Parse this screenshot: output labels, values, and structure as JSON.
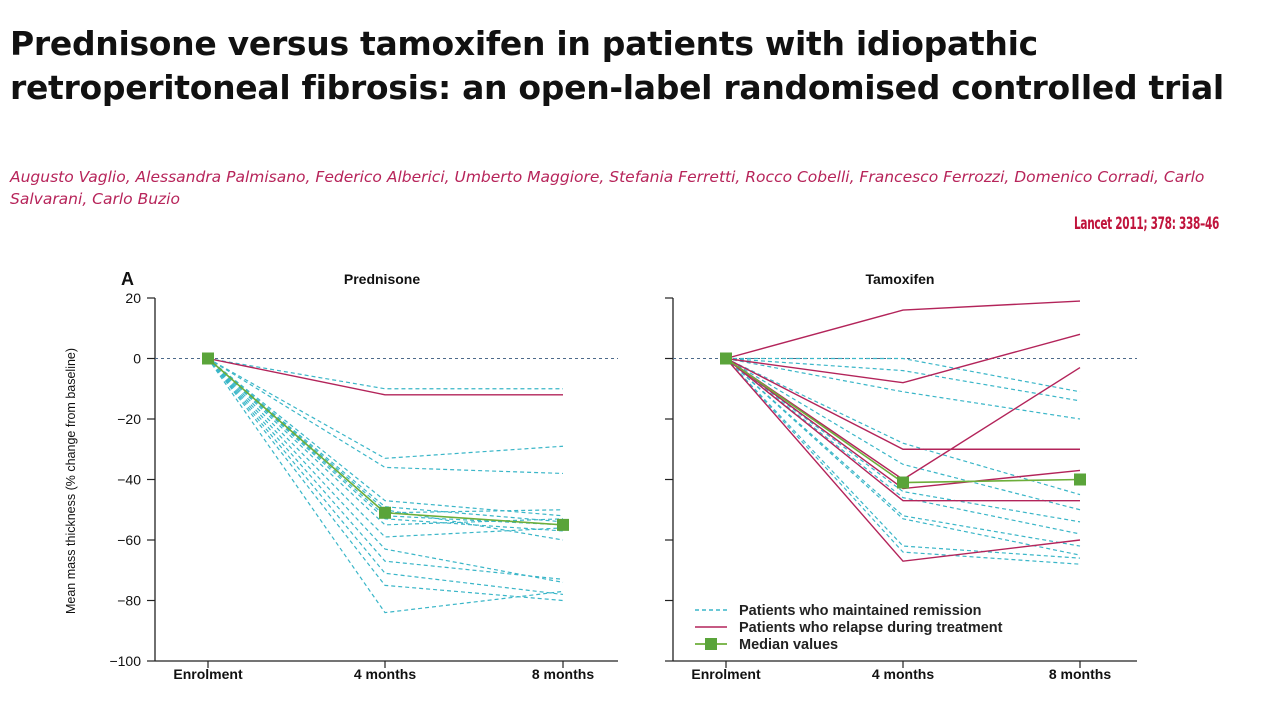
{
  "header": {
    "title": "Prednisone versus tamoxifen in patients with idiopathic retroperitoneal fibrosis: an open-label randomised controlled trial",
    "authors": "Augusto Vaglio, Alessandra Palmisano, Federico Alberici, Umberto Maggiore, Stefania Ferretti, Rocco Cobelli, Francesco Ferrozzi, Domenico Corradi, Carlo Salvarani, Carlo Buzio",
    "citation": "Lancet 2011; 378: 338–46"
  },
  "colors": {
    "remission": "#3ab6c8",
    "relapse": "#b3245a",
    "median": "#6dae3a",
    "median_marker": "#5aa43a",
    "axis": "#222222",
    "zero_line": "#4d6a8a"
  },
  "chart_data": [
    {
      "type": "line",
      "panel_label": "A",
      "title": "Prednisone",
      "ylabel": "Mean mass thickness (% change from baseline)",
      "categories": [
        "Enrolment",
        "4 months",
        "8 months"
      ],
      "ylim": [
        -100,
        20
      ],
      "yticks": [
        20,
        0,
        -20,
        -40,
        -60,
        -80,
        -100
      ],
      "zero_line": "dashed",
      "series": [
        {
          "group": "remission",
          "values": [
            0,
            -10,
            -10
          ]
        },
        {
          "group": "remission",
          "values": [
            0,
            -33,
            -29
          ]
        },
        {
          "group": "remission",
          "values": [
            0,
            -36,
            -38
          ]
        },
        {
          "group": "remission",
          "values": [
            0,
            -47,
            -52
          ]
        },
        {
          "group": "remission",
          "values": [
            0,
            -49,
            -54
          ]
        },
        {
          "group": "remission",
          "values": [
            0,
            -51,
            -50
          ]
        },
        {
          "group": "remission",
          "values": [
            0,
            -52,
            -55
          ]
        },
        {
          "group": "remission",
          "values": [
            0,
            -53,
            -57
          ]
        },
        {
          "group": "remission",
          "values": [
            0,
            -55,
            -53
          ]
        },
        {
          "group": "remission",
          "values": [
            0,
            -59,
            -56
          ]
        },
        {
          "group": "remission",
          "values": [
            0,
            -63,
            -74
          ]
        },
        {
          "group": "remission",
          "values": [
            0,
            -67,
            -73
          ]
        },
        {
          "group": "remission",
          "values": [
            0,
            -71,
            -78
          ]
        },
        {
          "group": "remission",
          "values": [
            0,
            -75,
            -80
          ]
        },
        {
          "group": "remission",
          "values": [
            0,
            -84,
            -77
          ]
        },
        {
          "group": "remission",
          "values": [
            0,
            -50,
            -60
          ]
        },
        {
          "group": "relapse",
          "values": [
            0,
            -12,
            -12
          ]
        },
        {
          "group": "median",
          "values": [
            0,
            -51,
            -55
          ]
        }
      ]
    },
    {
      "type": "line",
      "title": "Tamoxifen",
      "categories": [
        "Enrolment",
        "4 months",
        "8 months"
      ],
      "ylim": [
        -100,
        20
      ],
      "zero_line": "dashed",
      "series": [
        {
          "group": "remission",
          "values": [
            0,
            0,
            -11
          ]
        },
        {
          "group": "remission",
          "values": [
            0,
            -4,
            -14
          ]
        },
        {
          "group": "remission",
          "values": [
            0,
            -11,
            -20
          ]
        },
        {
          "group": "remission",
          "values": [
            0,
            -28,
            -45
          ]
        },
        {
          "group": "remission",
          "values": [
            0,
            -35,
            -50
          ]
        },
        {
          "group": "remission",
          "values": [
            0,
            -44,
            -54
          ]
        },
        {
          "group": "remission",
          "values": [
            0,
            -46,
            -58
          ]
        },
        {
          "group": "remission",
          "values": [
            0,
            -52,
            -62
          ]
        },
        {
          "group": "remission",
          "values": [
            0,
            -53,
            -65
          ]
        },
        {
          "group": "remission",
          "values": [
            0,
            -62,
            -66
          ]
        },
        {
          "group": "remission",
          "values": [
            0,
            -64,
            -68
          ]
        },
        {
          "group": "relapse",
          "values": [
            0,
            16,
            19
          ]
        },
        {
          "group": "relapse",
          "values": [
            0,
            -8,
            8
          ]
        },
        {
          "group": "relapse",
          "values": [
            0,
            -40,
            -3
          ]
        },
        {
          "group": "relapse",
          "values": [
            0,
            -30,
            -30
          ]
        },
        {
          "group": "relapse",
          "values": [
            0,
            -43,
            -37
          ]
        },
        {
          "group": "relapse",
          "values": [
            0,
            -47,
            -47
          ]
        },
        {
          "group": "relapse",
          "values": [
            0,
            -67,
            -60
          ]
        },
        {
          "group": "median",
          "values": [
            0,
            -41,
            -40
          ]
        }
      ],
      "legend": {
        "position": "bottom-left",
        "items": [
          {
            "group": "remission",
            "label": "Patients who maintained remission"
          },
          {
            "group": "relapse",
            "label": "Patients who relapse during treatment"
          },
          {
            "group": "median",
            "label": "Median values"
          }
        ]
      }
    }
  ]
}
